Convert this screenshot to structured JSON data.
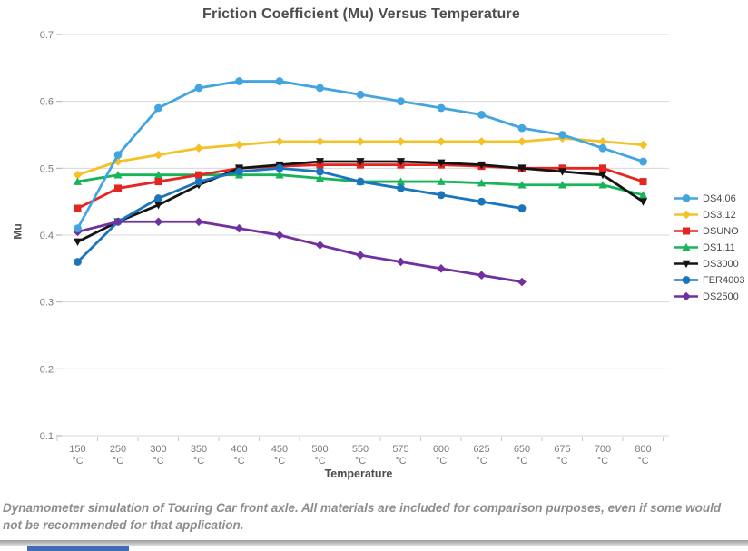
{
  "title": "Friction Coefficient (Mu) Versus Temperature",
  "caption": "Dynamometer simulation of Touring Car front axle. All materials are included for comparison purposes, even if some would not be recommended for that application.",
  "chart_data": {
    "type": "line",
    "title": "Friction Coefficient (Mu) Versus Temperature",
    "xlabel": "Temperature",
    "ylabel": "Mu",
    "ylim": [
      0.1,
      0.7
    ],
    "y_ticks": [
      0.7,
      0.6,
      0.5,
      0.4,
      0.3,
      0.2,
      0.1
    ],
    "grid": true,
    "legend_position": "right",
    "categories": [
      "150",
      "250",
      "300",
      "350",
      "400",
      "450",
      "500",
      "550",
      "575",
      "600",
      "625",
      "650",
      "675",
      "700",
      "800"
    ],
    "category_unit": "°C",
    "series": [
      {
        "name": "DS4.06",
        "color": "#42a5e0",
        "marker": "circle",
        "values": [
          0.41,
          0.52,
          0.59,
          0.62,
          0.63,
          0.63,
          0.62,
          0.61,
          0.6,
          0.59,
          0.58,
          0.56,
          0.55,
          0.53,
          0.51
        ]
      },
      {
        "name": "DS3.12",
        "color": "#f6c127",
        "marker": "diamond",
        "values": [
          0.49,
          0.51,
          0.52,
          0.53,
          0.535,
          0.54,
          0.54,
          0.54,
          0.54,
          0.54,
          0.54,
          0.54,
          0.545,
          0.54,
          0.535
        ]
      },
      {
        "name": "DSUNO",
        "color": "#e62420",
        "marker": "square",
        "values": [
          0.44,
          0.47,
          0.48,
          0.49,
          0.5,
          0.503,
          0.505,
          0.505,
          0.505,
          0.505,
          0.503,
          0.5,
          0.5,
          0.5,
          0.48
        ]
      },
      {
        "name": "DS1.11",
        "color": "#17b45a",
        "marker": "triangle-up",
        "values": [
          0.48,
          0.49,
          0.49,
          0.49,
          0.49,
          0.49,
          0.485,
          0.48,
          0.48,
          0.48,
          0.478,
          0.475,
          0.475,
          0.475,
          0.46
        ]
      },
      {
        "name": "DS3000",
        "color": "#141414",
        "marker": "triangle-down",
        "values": [
          0.39,
          0.42,
          0.445,
          0.475,
          0.5,
          0.505,
          0.51,
          0.51,
          0.51,
          0.508,
          0.505,
          0.5,
          0.495,
          0.49,
          0.45
        ]
      },
      {
        "name": "FER4003",
        "color": "#1b75bc",
        "marker": "circle",
        "values": [
          0.36,
          0.42,
          0.455,
          0.48,
          0.495,
          0.5,
          0.495,
          0.48,
          0.47,
          0.46,
          0.45,
          0.44,
          null,
          null,
          null
        ]
      },
      {
        "name": "DS2500",
        "color": "#7030a0",
        "marker": "diamond",
        "values": [
          0.405,
          0.42,
          0.42,
          0.42,
          0.41,
          0.4,
          0.385,
          0.37,
          0.36,
          0.35,
          0.34,
          0.33,
          null,
          null,
          null
        ]
      }
    ]
  }
}
